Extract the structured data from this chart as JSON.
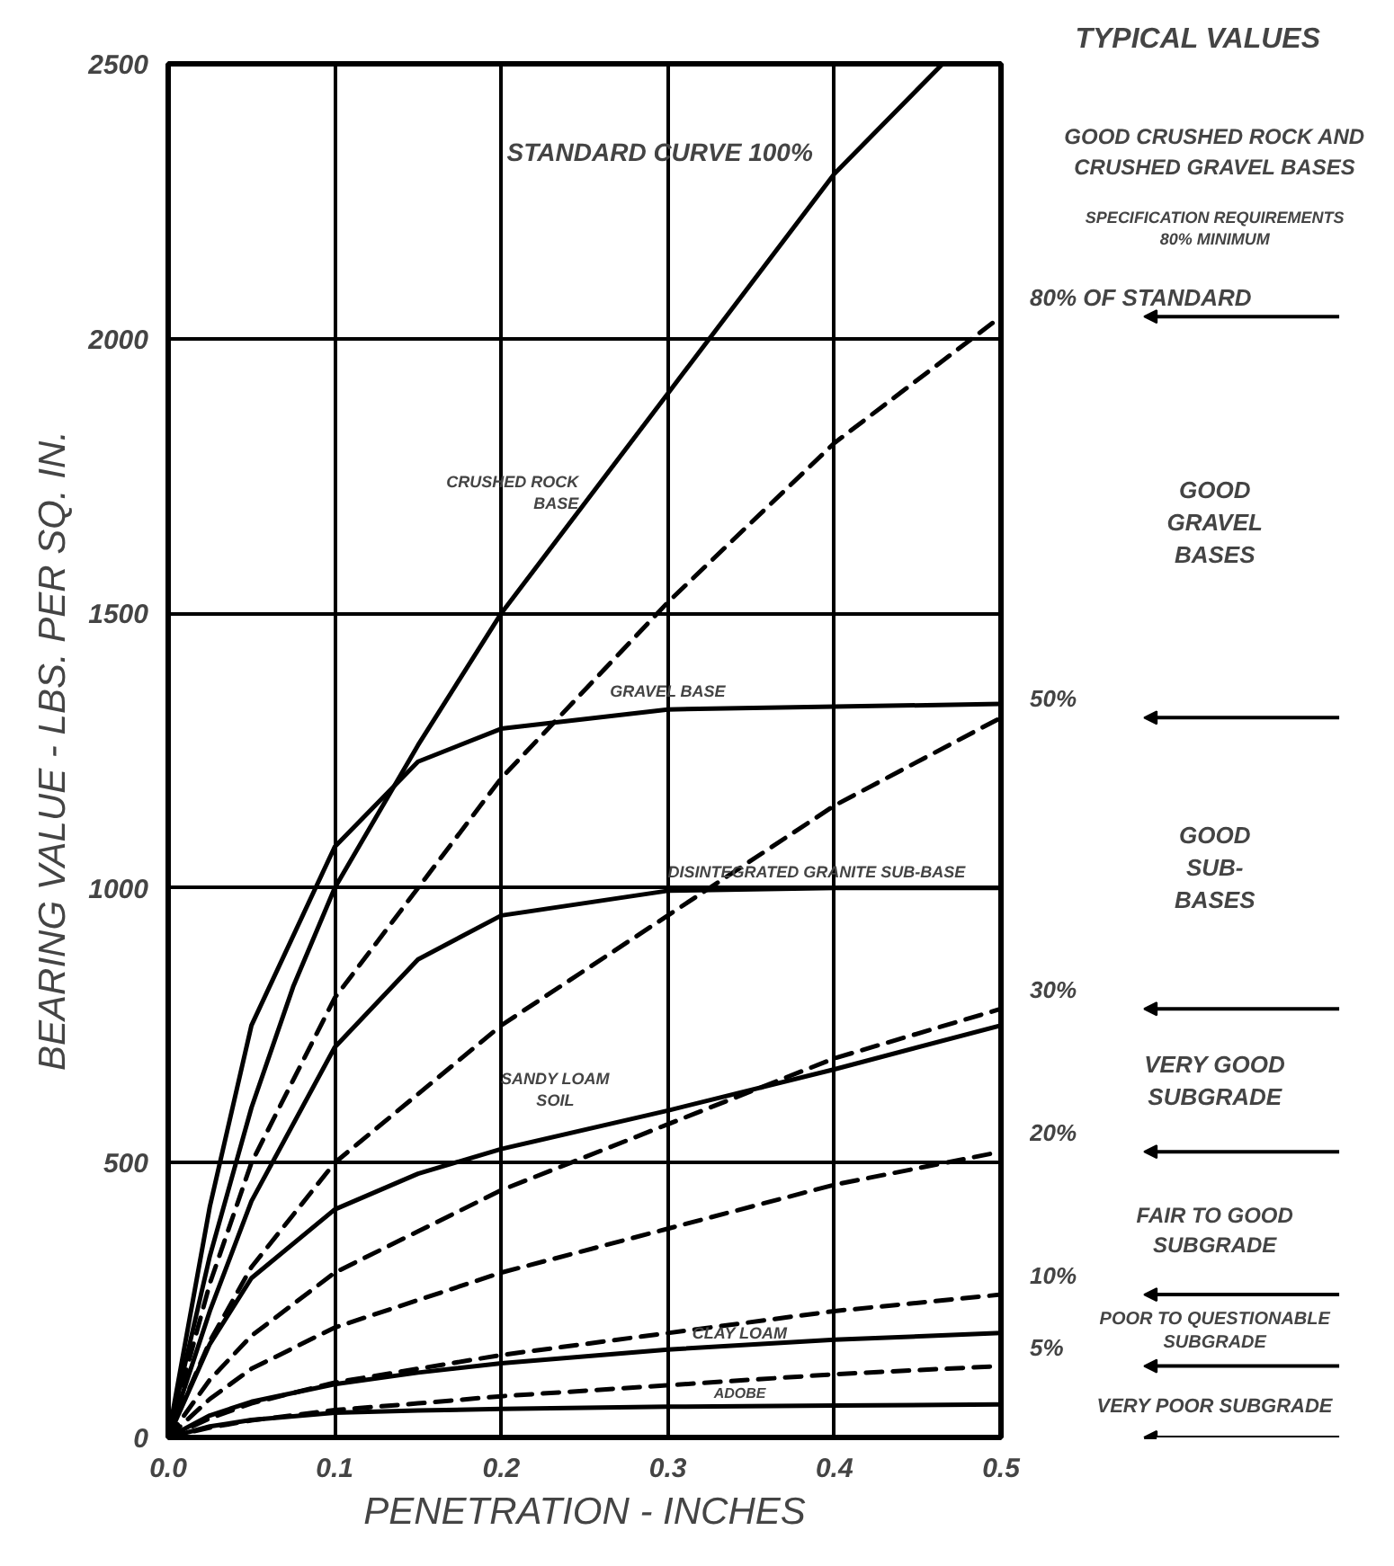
{
  "chart_data": {
    "type": "line",
    "xlabel": "PENETRATION - INCHES",
    "ylabel": "BEARING VALUE - LBS. PER SQ. IN.",
    "x": [
      0,
      0.025,
      0.05,
      0.1,
      0.15,
      0.2,
      0.3,
      0.4,
      0.5
    ],
    "xlim": [
      0,
      0.5
    ],
    "xticks": [
      {
        "value": 0,
        "label": "0.0"
      },
      0.1,
      0.2,
      0.3,
      0.4,
      0.5
    ],
    "ylim": [
      0,
      2500
    ],
    "yticks": [
      0,
      500,
      1000,
      1500,
      2000,
      2500
    ],
    "grid": true,
    "series": [
      {
        "name": "STANDARD CURVE 100%",
        "color": "#000000",
        "line_style": "solid",
        "x": [
          0,
          0.025,
          0.05,
          0.075,
          0.1,
          0.15,
          0.2,
          0.25,
          0.3,
          0.35,
          0.4,
          0.465
        ],
        "values": [
          0,
          330,
          600,
          820,
          1000,
          1260,
          1500,
          1700,
          1900,
          2100,
          2300,
          2500
        ]
      },
      {
        "name": "GRAVEL BASE",
        "color": "#000000",
        "line_style": "solid",
        "values": [
          0,
          420,
          750,
          1075,
          1230,
          1290,
          1325,
          1330,
          1335
        ]
      },
      {
        "name": "DISINTEGRATED GRANITE SUB-BASE",
        "color": "#000000",
        "line_style": "solid",
        "values": [
          0,
          230,
          430,
          710,
          870,
          950,
          995,
          1000,
          1000
        ]
      },
      {
        "name": "SANDY LOAM SOIL",
        "color": "#000000",
        "line_style": "solid",
        "values": [
          0,
          170,
          290,
          415,
          480,
          525,
          595,
          670,
          750
        ]
      },
      {
        "name": "CLAY LOAM",
        "color": "#000000",
        "line_style": "solid",
        "values": [
          0,
          40,
          65,
          97,
          118,
          135,
          160,
          178,
          190
        ]
      },
      {
        "name": "ADOBE",
        "color": "#000000",
        "line_style": "solid",
        "values": [
          0,
          20,
          32,
          45,
          49,
          52,
          56,
          58,
          60
        ]
      },
      {
        "name": "80% OF STANDARD",
        "color": "#000000",
        "line_style": "dashed",
        "values": [
          0,
          280,
          500,
          800,
          1000,
          1200,
          1520,
          1810,
          2040
        ]
      },
      {
        "name": "50%",
        "color": "#000000",
        "line_style": "dashed",
        "values": [
          0,
          175,
          310,
          500,
          625,
          750,
          950,
          1150,
          1310
        ]
      },
      {
        "name": "30%",
        "color": "#000000",
        "line_style": "dashed",
        "values": [
          0,
          105,
          185,
          300,
          375,
          450,
          570,
          690,
          780
        ]
      },
      {
        "name": "20%",
        "color": "#000000",
        "line_style": "dashed",
        "values": [
          0,
          70,
          125,
          200,
          250,
          300,
          380,
          460,
          520
        ]
      },
      {
        "name": "10%",
        "color": "#000000",
        "line_style": "dashed",
        "values": [
          0,
          35,
          62,
          100,
          125,
          150,
          190,
          230,
          260
        ]
      },
      {
        "name": "5%",
        "color": "#000000",
        "line_style": "dashed",
        "values": [
          0,
          18,
          31,
          50,
          62,
          75,
          95,
          115,
          130
        ]
      }
    ],
    "annotations": [
      {
        "text": "CRUSHED ROCK BASE",
        "x": 0.255,
        "y": 1720
      },
      "TYPICAL VALUES",
      "GOOD CRUSHED ROCK AND CRUSHED GRAVEL BASES",
      "SPECIFICATION REQUIREMENTS 80% MINIMUM",
      "GOOD GRAVEL BASES",
      "GOOD SUB-BASES",
      "VERY GOOD SUBGRADE",
      "FAIR TO GOOD SUBGRADE",
      "POOR TO QUESTIONABLE SUBGRADE",
      "VERY POOR SUBGRADE"
    ]
  }
}
